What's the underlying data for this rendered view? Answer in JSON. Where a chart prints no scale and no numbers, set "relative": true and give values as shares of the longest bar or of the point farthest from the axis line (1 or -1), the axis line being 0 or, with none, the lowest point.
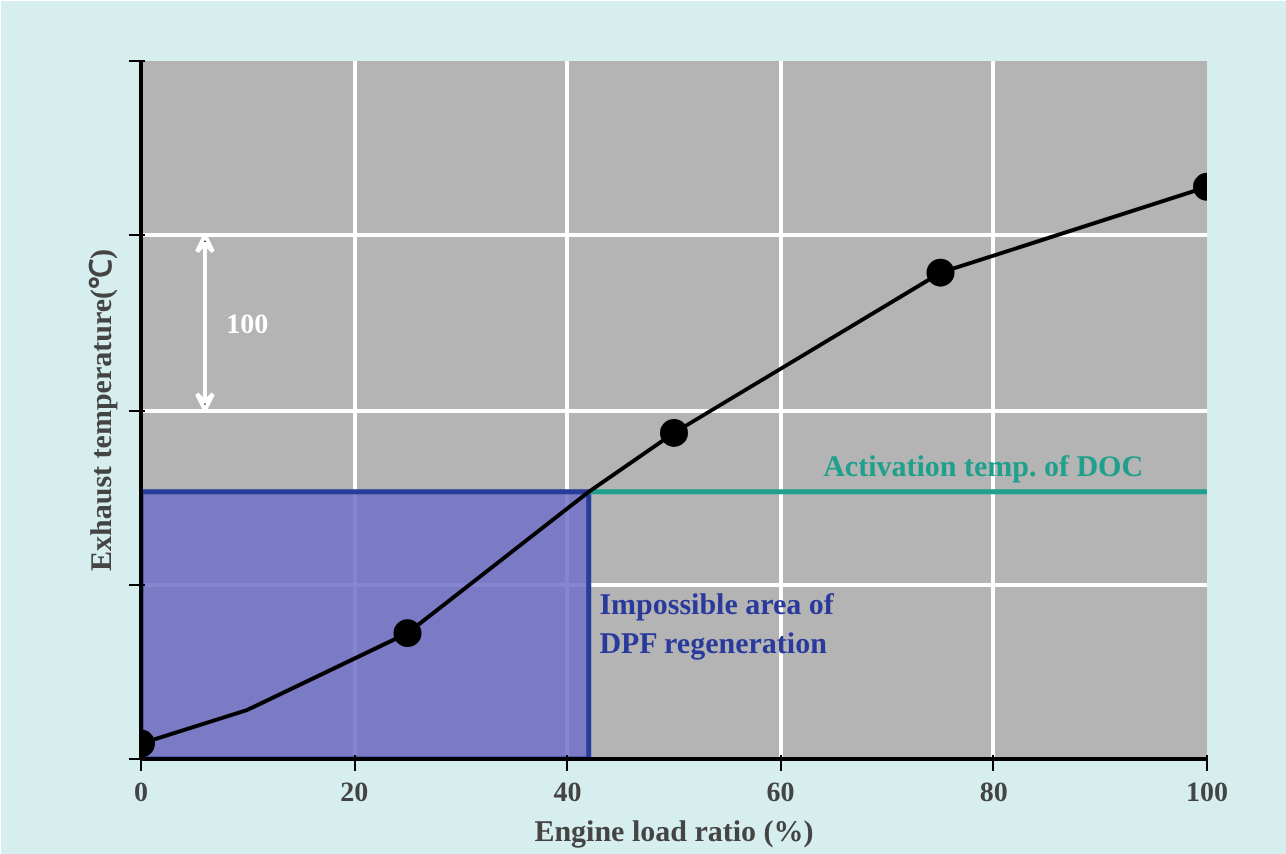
{
  "chart_data": {
    "type": "line",
    "relative": true,
    "xlabel": "Engine load ratio (%)",
    "ylabel": "Exhaust temperature(℃)",
    "xlim": [
      0,
      100
    ],
    "xticks": [
      0,
      20,
      40,
      60,
      80,
      100
    ],
    "grid": true,
    "line_style": "solid",
    "series": [
      {
        "color": "#000000",
        "x": [
          0,
          10,
          25,
          42,
          50,
          75,
          100
        ],
        "values": [
          0.027,
          0.086,
          0.22,
          0.467,
          0.57,
          0.85,
          1.0
        ]
      },
      {
        "type": "scatter",
        "marker": "circle",
        "color": "#000000",
        "x": [
          0,
          25,
          50,
          75,
          100
        ],
        "values": [
          0.027,
          0.22,
          0.57,
          0.85,
          1.0
        ]
      }
    ],
    "ref_lines": [
      {
        "axis": "y",
        "value": 0.467,
        "label": "Activation temp. of DOC",
        "color": "#1fa08c"
      }
    ],
    "bands": [
      {
        "axis": "x",
        "from": 0,
        "to": 42,
        "label": "Impossible area of\nDPF regeneration",
        "color": "#7070c8"
      }
    ],
    "annotations": [
      "100"
    ]
  }
}
